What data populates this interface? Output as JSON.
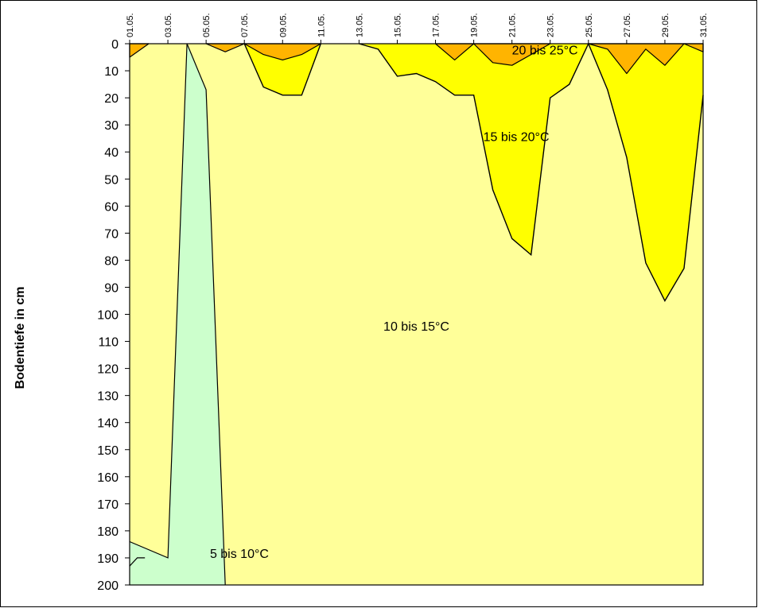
{
  "chart_data": {
    "type": "area",
    "title": "",
    "ylabel": "Bodentiefe in cm",
    "xlabel": "",
    "x_tick_labels": [
      "01.05.",
      "03.05.",
      "05.05.",
      "07.05.",
      "09.05.",
      "11.05.",
      "13.05.",
      "15.05.",
      "17.05.",
      "19.05.",
      "21.05.",
      "23.05.",
      "25.05.",
      "27.05.",
      "29.05.",
      "31.05."
    ],
    "x_days": [
      1,
      3,
      5,
      7,
      9,
      11,
      13,
      15,
      17,
      19,
      21,
      23,
      25,
      27,
      29,
      31
    ],
    "xlim": [
      1,
      31
    ],
    "y_ticks": [
      0,
      10,
      20,
      30,
      40,
      50,
      60,
      70,
      80,
      90,
      100,
      110,
      120,
      130,
      140,
      150,
      160,
      170,
      180,
      190,
      200
    ],
    "ylim": [
      0,
      200
    ],
    "y_inverted": true,
    "grid": false,
    "legend": "none",
    "background_class": "10 bis 15°C",
    "zones": [
      {
        "name": "5 bis 10°C",
        "color": "#ccffcc",
        "boundary": [
          [
            1,
            184
          ],
          [
            3,
            190
          ],
          [
            4,
            0
          ],
          [
            5,
            17
          ],
          [
            6,
            200
          ]
        ],
        "label_at": [
          5.2,
          190
        ],
        "fill_polygon": [
          [
            1,
            184
          ],
          [
            3,
            190
          ],
          [
            4,
            0
          ],
          [
            5,
            17
          ],
          [
            6,
            200
          ],
          [
            1,
            200
          ]
        ]
      },
      {
        "name": "15 bis 20°C",
        "color": "#ffff00",
        "segments": [
          {
            "top": [
              [
                7,
                0
              ],
              [
                9,
                0
              ],
              [
                11,
                0
              ]
            ],
            "bottom": [
              [
                7,
                0
              ],
              [
                8,
                16
              ],
              [
                9,
                19
              ],
              [
                10,
                19
              ],
              [
                11,
                0
              ]
            ]
          },
          {
            "top": [
              [
                13,
                0
              ],
              [
                31,
                0
              ]
            ],
            "bottom": [
              [
                13,
                0
              ],
              [
                14,
                2
              ],
              [
                15,
                12
              ],
              [
                16,
                11
              ],
              [
                17,
                14
              ],
              [
                18,
                19
              ],
              [
                19,
                19
              ],
              [
                20,
                54
              ],
              [
                21,
                72
              ],
              [
                22,
                78
              ],
              [
                23,
                20
              ],
              [
                24,
                15
              ],
              [
                25,
                0
              ],
              [
                26,
                17
              ],
              [
                27,
                42
              ],
              [
                28,
                81
              ],
              [
                29,
                95
              ],
              [
                30,
                83
              ],
              [
                31,
                19
              ]
            ]
          }
        ],
        "label_at": [
          19.5,
          36
        ]
      },
      {
        "name": "20 bis 25°C",
        "color": "#ffb400",
        "segments": [
          {
            "polygon": [
              [
                1,
                0
              ],
              [
                2,
                0
              ],
              [
                1,
                5
              ]
            ]
          },
          {
            "polygon": [
              [
                5,
                0
              ],
              [
                6,
                3
              ],
              [
                7,
                0
              ]
            ]
          },
          {
            "polygon": [
              [
                7,
                0
              ],
              [
                8,
                4
              ],
              [
                9,
                6
              ],
              [
                10,
                4
              ],
              [
                11,
                0
              ]
            ]
          },
          {
            "polygon": [
              [
                17,
                0
              ],
              [
                18,
                6
              ],
              [
                19,
                0
              ]
            ]
          },
          {
            "polygon": [
              [
                19,
                0
              ],
              [
                20,
                7
              ],
              [
                21,
                8
              ],
              [
                22,
                4
              ],
              [
                23,
                0
              ]
            ]
          },
          {
            "polygon": [
              [
                25,
                0
              ],
              [
                26,
                2
              ],
              [
                27,
                11
              ],
              [
                28,
                2
              ],
              [
                29,
                8
              ],
              [
                30,
                0
              ]
            ]
          },
          {
            "polygon": [
              [
                30,
                0
              ],
              [
                31,
                0
              ],
              [
                31,
                3
              ]
            ]
          }
        ],
        "label_at": [
          21,
          4
        ]
      }
    ],
    "center_label": {
      "text": "10 bis 15°C",
      "at": [
        16,
        106
      ]
    }
  }
}
